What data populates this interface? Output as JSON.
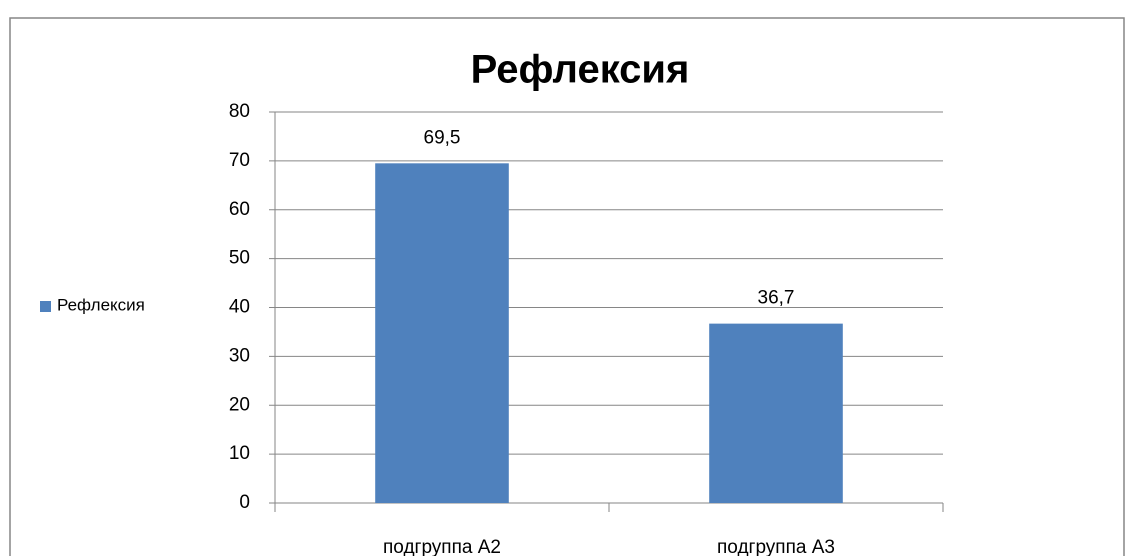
{
  "chart_data": {
    "type": "bar",
    "title": "Рефлексия",
    "categories": [
      "подгруппа А2",
      "подгруппа А3"
    ],
    "series": [
      {
        "name": "Рефлексия",
        "color": "#4f81bd",
        "values": [
          69.5,
          36.7
        ],
        "value_labels": [
          "69,5",
          "36,7"
        ]
      }
    ],
    "ylim": [
      0,
      80
    ],
    "yticks": [
      0,
      10,
      20,
      30,
      40,
      50,
      60,
      70,
      80
    ],
    "grid": true,
    "legend": "left"
  }
}
